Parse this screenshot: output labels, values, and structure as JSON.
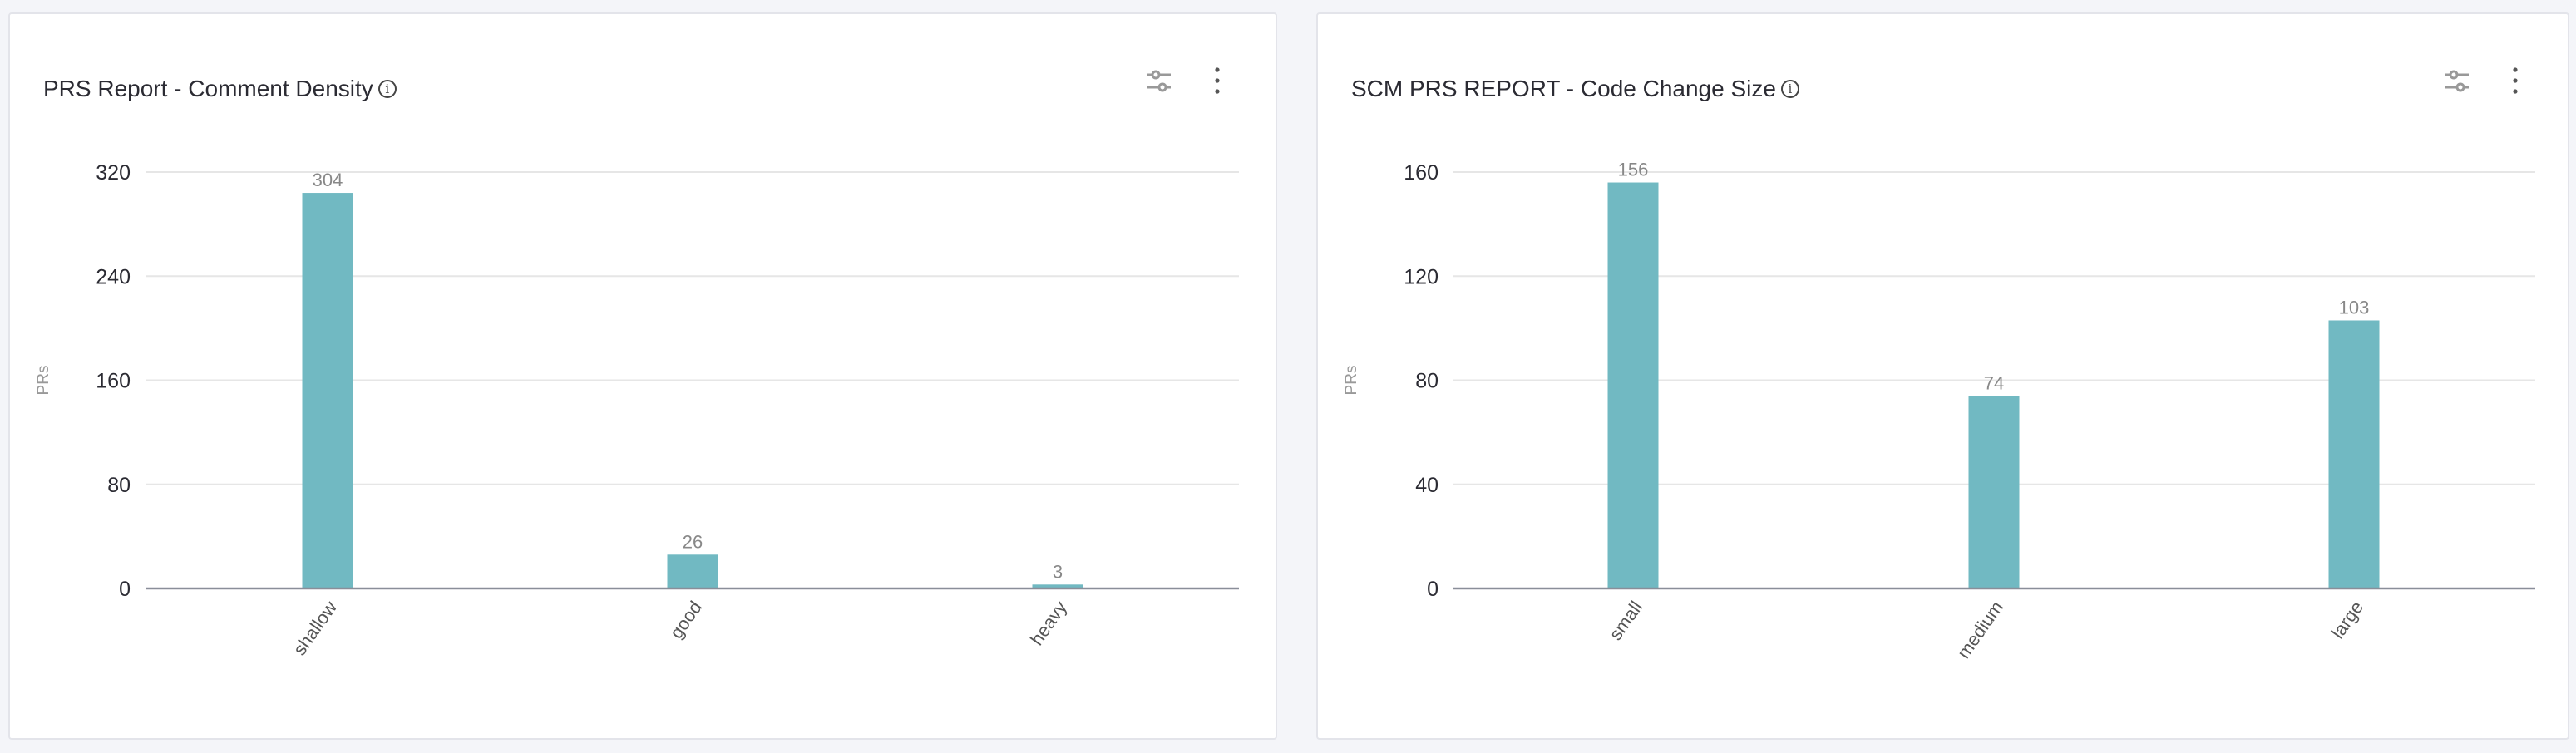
{
  "colors": {
    "bar": "#71b9c2",
    "grid": "#e6e6e6",
    "axis": "#8a8e99",
    "background": "#f4f5f9"
  },
  "icons": {
    "info": "info-circle-icon",
    "settings": "sliders-icon",
    "menu": "kebab-menu-icon"
  },
  "chart_data": [
    {
      "type": "bar",
      "title": "PRS Report - Comment Density",
      "ylabel": "PRs",
      "categories": [
        "shallow",
        "good",
        "heavy"
      ],
      "values": [
        304,
        26,
        3
      ],
      "data_labels": [
        "304",
        "26",
        "3"
      ],
      "yticks": [
        "0",
        "80",
        "160",
        "240",
        "320"
      ],
      "ylim": [
        0,
        320
      ],
      "grid": true
    },
    {
      "type": "bar",
      "title": "SCM PRS REPORT - Code Change Size",
      "ylabel": "PRs",
      "categories": [
        "small",
        "medium",
        "large"
      ],
      "values": [
        156,
        74,
        103
      ],
      "data_labels": [
        "156",
        "74",
        "103"
      ],
      "yticks": [
        "0",
        "40",
        "80",
        "120",
        "160"
      ],
      "ylim": [
        0,
        160
      ],
      "grid": true
    }
  ]
}
